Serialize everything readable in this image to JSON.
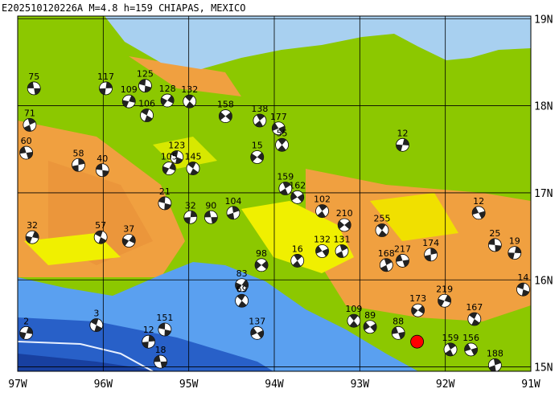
{
  "map": {
    "title": "E202510120226A M=4.8 h=159 CHIAPAS, MEXICO",
    "lonlim": [
      -97,
      -91
    ],
    "latlim": [
      14.95,
      19.03
    ],
    "lonticks": [
      {
        "value": -97,
        "label": "97W"
      },
      {
        "value": -96,
        "label": "96W"
      },
      {
        "value": -95,
        "label": "95W"
      },
      {
        "value": -94,
        "label": "94W"
      },
      {
        "value": -93,
        "label": "93W"
      },
      {
        "value": -92,
        "label": "92W"
      },
      {
        "value": -91,
        "label": "91W"
      }
    ],
    "latticks": [
      {
        "value": 15,
        "label": "15N"
      },
      {
        "value": 16,
        "label": "16N"
      },
      {
        "value": 17,
        "label": "17N"
      },
      {
        "value": 18,
        "label": "18N"
      },
      {
        "value": 19,
        "label": "19N"
      }
    ],
    "main_event": {
      "lon": -92.33,
      "lat": 15.29,
      "color": "#ff0000"
    },
    "event_color": "#222222",
    "events": [
      {
        "lon": -96.81,
        "lat": 18.2,
        "depth": 75
      },
      {
        "lon": -95.97,
        "lat": 18.2,
        "depth": 117
      },
      {
        "lon": -95.51,
        "lat": 18.23,
        "depth": 125
      },
      {
        "lon": -95.7,
        "lat": 18.05,
        "depth": 109
      },
      {
        "lon": -95.49,
        "lat": 17.89,
        "depth": 106
      },
      {
        "lon": -95.25,
        "lat": 18.06,
        "depth": 128
      },
      {
        "lon": -94.99,
        "lat": 18.05,
        "depth": 132
      },
      {
        "lon": -94.57,
        "lat": 17.88,
        "depth": 158
      },
      {
        "lon": -94.17,
        "lat": 17.83,
        "depth": 138
      },
      {
        "lon": -93.95,
        "lat": 17.74,
        "depth": 177
      },
      {
        "lon": -96.86,
        "lat": 17.78,
        "depth": 71
      },
      {
        "lon": -96.9,
        "lat": 17.46,
        "depth": 60
      },
      {
        "lon": -96.29,
        "lat": 17.32,
        "depth": 58
      },
      {
        "lon": -96.01,
        "lat": 17.26,
        "depth": 40
      },
      {
        "lon": -92.5,
        "lat": 17.55,
        "depth": 12
      },
      {
        "lon": -95.14,
        "lat": 17.41,
        "depth": 123
      },
      {
        "lon": -95.23,
        "lat": 17.28,
        "depth": 105
      },
      {
        "lon": -94.95,
        "lat": 17.28,
        "depth": 145
      },
      {
        "lon": -94.2,
        "lat": 17.41,
        "depth": 15
      },
      {
        "lon": -93.91,
        "lat": 17.55,
        "depth": 55
      },
      {
        "lon": -93.73,
        "lat": 16.95,
        "depth": 162
      },
      {
        "lon": -93.87,
        "lat": 17.05,
        "depth": 159
      },
      {
        "lon": -91.61,
        "lat": 16.77,
        "depth": 12
      },
      {
        "lon": -94.48,
        "lat": 16.77,
        "depth": 104
      },
      {
        "lon": -94.74,
        "lat": 16.72,
        "depth": 90
      },
      {
        "lon": -94.98,
        "lat": 16.72,
        "depth": 32
      },
      {
        "lon": -95.28,
        "lat": 16.88,
        "depth": 21
      },
      {
        "lon": -96.83,
        "lat": 16.49,
        "depth": 32
      },
      {
        "lon": -96.03,
        "lat": 16.49,
        "depth": 57
      },
      {
        "lon": -95.7,
        "lat": 16.45,
        "depth": 37
      },
      {
        "lon": -92.74,
        "lat": 16.57,
        "depth": 255
      },
      {
        "lon": -93.18,
        "lat": 16.63,
        "depth": 210
      },
      {
        "lon": -93.44,
        "lat": 16.79,
        "depth": 102
      },
      {
        "lon": -93.44,
        "lat": 16.33,
        "depth": 132
      },
      {
        "lon": -93.21,
        "lat": 16.33,
        "depth": 131
      },
      {
        "lon": -92.5,
        "lat": 16.22,
        "depth": 217
      },
      {
        "lon": -92.17,
        "lat": 16.29,
        "depth": 174
      },
      {
        "lon": -91.42,
        "lat": 16.4,
        "depth": 25
      },
      {
        "lon": -91.19,
        "lat": 16.31,
        "depth": 19
      },
      {
        "lon": -91.09,
        "lat": 15.89,
        "depth": 14
      },
      {
        "lon": -92.01,
        "lat": 15.76,
        "depth": 219
      },
      {
        "lon": -91.66,
        "lat": 15.55,
        "depth": 167
      },
      {
        "lon": -92.32,
        "lat": 15.65,
        "depth": 173
      },
      {
        "lon": -93.07,
        "lat": 15.53,
        "depth": 109
      },
      {
        "lon": -92.88,
        "lat": 15.46,
        "depth": 89
      },
      {
        "lon": -91.94,
        "lat": 15.2,
        "depth": 159
      },
      {
        "lon": -91.7,
        "lat": 15.2,
        "depth": 156
      },
      {
        "lon": -91.42,
        "lat": 15.02,
        "depth": 188
      },
      {
        "lon": -95.33,
        "lat": 15.06,
        "depth": 18
      },
      {
        "lon": -95.47,
        "lat": 15.29,
        "depth": 12
      },
      {
        "lon": -95.28,
        "lat": 15.43,
        "depth": 151
      },
      {
        "lon": -96.9,
        "lat": 15.39,
        "depth": 2
      },
      {
        "lon": -96.08,
        "lat": 15.48,
        "depth": 3
      },
      {
        "lon": -94.38,
        "lat": 15.94,
        "depth": 83
      },
      {
        "lon": -94.38,
        "lat": 15.76,
        "depth": 69
      },
      {
        "lon": -94.15,
        "lat": 16.17,
        "depth": 98
      },
      {
        "lon": -93.73,
        "lat": 16.22,
        "depth": 16
      },
      {
        "lon": -94.2,
        "lat": 15.39,
        "depth": 137
      },
      {
        "lon": -92.69,
        "lat": 16.17,
        "depth": 168
      },
      {
        "lon": -92.55,
        "lat": 15.39,
        "depth": 88
      }
    ]
  }
}
